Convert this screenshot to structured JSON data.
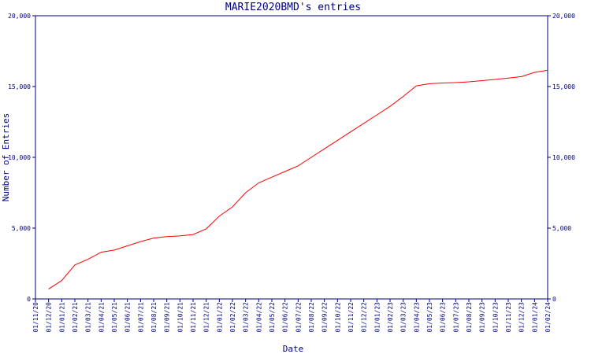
{
  "chart_data": {
    "type": "line",
    "title": "MARIE2020BMD's entries",
    "x_label": "Date",
    "y_label": "Number of Entries",
    "categories": [
      "01/11/20",
      "01/12/20",
      "01/01/21",
      "01/02/21",
      "01/03/21",
      "01/04/21",
      "01/05/21",
      "01/06/21",
      "01/07/21",
      "01/08/21",
      "01/09/21",
      "01/10/21",
      "01/11/21",
      "01/12/21",
      "01/01/22",
      "01/02/22",
      "01/03/22",
      "01/04/22",
      "01/05/22",
      "01/06/22",
      "01/07/22",
      "01/08/22",
      "01/09/22",
      "01/10/22",
      "01/11/22",
      "01/12/22",
      "01/01/23",
      "01/02/23",
      "01/03/23",
      "01/04/23",
      "01/05/23",
      "01/06/23",
      "01/07/23",
      "01/08/23",
      "01/09/23",
      "01/10/23",
      "01/11/23",
      "01/12/23",
      "01/01/24",
      "01/02/24"
    ],
    "series": [
      {
        "name": "Entries",
        "color": "#ff0000",
        "values": [
          null,
          700,
          1300,
          2400,
          2800,
          3300,
          3450,
          3750,
          4050,
          4300,
          4400,
          4450,
          4550,
          4950,
          5850,
          6500,
          7500,
          8200,
          8600,
          9000,
          9400,
          10000,
          10600,
          11200,
          11800,
          12400,
          13000,
          13600,
          14300,
          15050,
          15200,
          15250,
          15280,
          15330,
          15420,
          15500,
          15600,
          15700,
          16000,
          16150
        ]
      }
    ],
    "ylim": [
      0,
      20000
    ],
    "yticks": [
      0,
      {
        "value": 5000,
        "label": "5,000"
      },
      {
        "value": 10000,
        "label": "10,000"
      },
      {
        "value": 15000,
        "label": "15,000"
      },
      {
        "value": 20000,
        "label": "20,000"
      }
    ],
    "y2lim": [
      0,
      20000
    ],
    "y2ticks": [
      0,
      {
        "value": 5000,
        "label": "5,000"
      },
      {
        "value": 10000,
        "label": "10,000"
      },
      {
        "value": 15000,
        "label": "15,000"
      },
      {
        "value": 20000,
        "label": "20,000"
      }
    ],
    "axis_color": "#000080"
  }
}
